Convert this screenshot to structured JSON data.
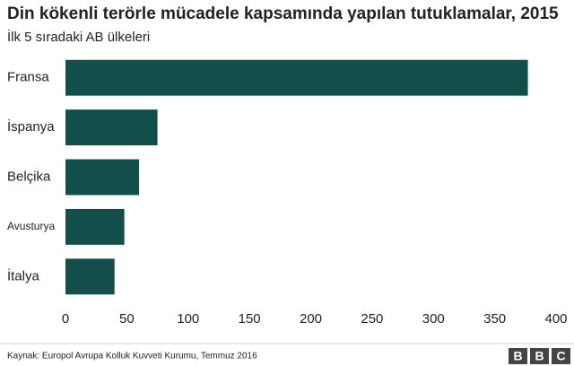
{
  "chart_data": {
    "type": "bar",
    "orientation": "horizontal",
    "title": "Din kökenli terörle mücadele kapsamında yapılan tutuklamalar, 2015",
    "subtitle": "İlk 5 sıradaki AB ülkeleri",
    "categories": [
      "Fransa",
      "İspanya",
      "Belçika",
      "Avusturya",
      "İtalya"
    ],
    "values": [
      377,
      75,
      60,
      48,
      40
    ],
    "color": "#124e4a",
    "xlim": [
      0,
      400
    ],
    "xticks": [
      0,
      50,
      100,
      150,
      200,
      250,
      300,
      350,
      400
    ],
    "grid": false,
    "source": "Kaynak: Europol Avrupa Kolluk Kuvveti Kurumu, Temmuz 2016",
    "logo": [
      "B",
      "B",
      "C"
    ]
  }
}
